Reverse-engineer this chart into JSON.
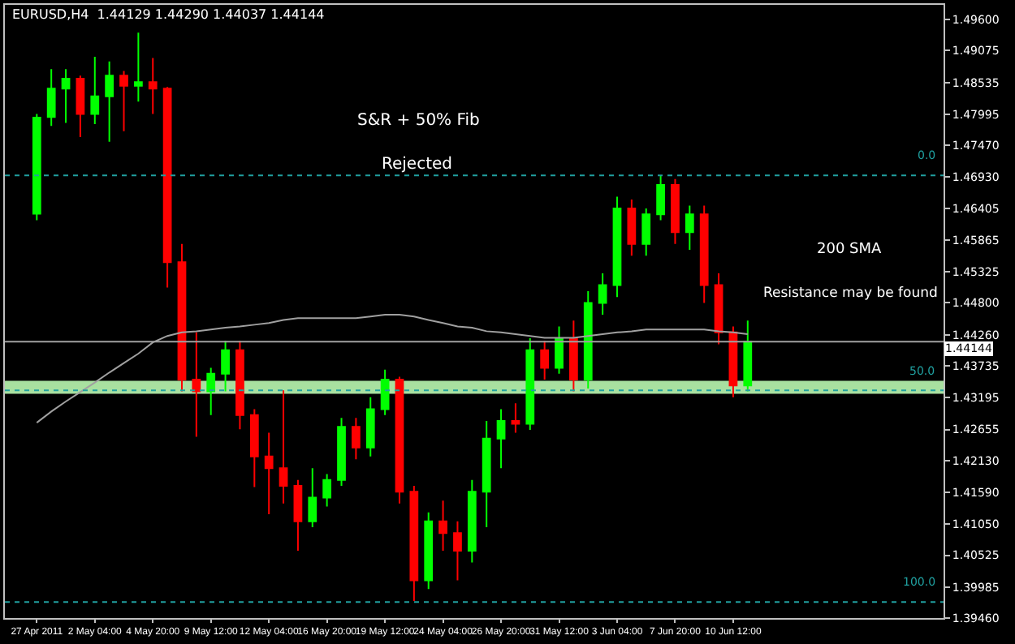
{
  "chart_data": {
    "type": "candlestick",
    "title": "EURUSD,H4  1.44129 1.44290 1.44037 1.44144",
    "categories": [
      "27 Apr 2011",
      null,
      null,
      null,
      "2 May 04:00",
      null,
      null,
      null,
      "4 May 20:00",
      null,
      null,
      null,
      "9 May 12:00",
      null,
      null,
      null,
      "12 May 04:00",
      null,
      null,
      null,
      "16 May 20:00",
      null,
      null,
      null,
      "19 May 12:00",
      null,
      null,
      null,
      "24 May 04:00",
      null,
      null,
      null,
      "26 May 20:00",
      null,
      null,
      null,
      "31 May 12:00",
      null,
      null,
      null,
      "3 Jun 04:00",
      null,
      null,
      null,
      "7 Jun 20:00",
      null,
      null,
      null,
      "10 Jun 12:00",
      null
    ],
    "ohlc": [
      [
        1.4631,
        1.48,
        1.462,
        1.4794
      ],
      [
        1.4795,
        1.4876,
        1.478,
        1.4843
      ],
      [
        1.4843,
        1.4876,
        1.4785,
        1.486
      ],
      [
        1.486,
        1.4865,
        1.4761,
        1.48
      ],
      [
        1.48,
        1.4897,
        1.4783,
        1.483
      ],
      [
        1.483,
        1.4889,
        1.4753,
        1.4865
      ],
      [
        1.4865,
        1.4873,
        1.4771,
        1.4848
      ],
      [
        1.4848,
        1.4938,
        1.4821,
        1.4854
      ],
      [
        1.4854,
        1.4895,
        1.48,
        1.4843
      ],
      [
        1.4843,
        1.4846,
        1.4506,
        1.4549
      ],
      [
        1.4549,
        1.458,
        1.433,
        1.435
      ],
      [
        1.435,
        1.443,
        1.4253,
        1.433
      ],
      [
        1.433,
        1.437,
        1.429,
        1.436
      ],
      [
        1.436,
        1.4416,
        1.433,
        1.44
      ],
      [
        1.44,
        1.4416,
        1.4266,
        1.429
      ],
      [
        1.429,
        1.43,
        1.4168,
        1.422
      ],
      [
        1.422,
        1.426,
        1.4122,
        1.42
      ],
      [
        1.42,
        1.4332,
        1.414,
        1.417
      ],
      [
        1.417,
        1.418,
        1.406,
        1.411
      ],
      [
        1.411,
        1.42,
        1.41,
        1.415
      ],
      [
        1.415,
        1.419,
        1.4135,
        1.418
      ],
      [
        1.418,
        1.4285,
        1.417,
        1.427
      ],
      [
        1.427,
        1.4285,
        1.4215,
        1.4235
      ],
      [
        1.4235,
        1.432,
        1.422,
        1.43
      ],
      [
        1.43,
        1.4367,
        1.429,
        1.435
      ],
      [
        1.435,
        1.4355,
        1.414,
        1.416
      ],
      [
        1.416,
        1.417,
        1.3975,
        1.401
      ],
      [
        1.401,
        1.4125,
        1.3995,
        1.411
      ],
      [
        1.411,
        1.4145,
        1.406,
        1.409
      ],
      [
        1.409,
        1.411,
        1.401,
        1.406
      ],
      [
        1.406,
        1.418,
        1.404,
        1.416
      ],
      [
        1.416,
        1.428,
        1.41,
        1.425
      ],
      [
        1.425,
        1.43,
        1.42,
        1.428
      ],
      [
        1.428,
        1.431,
        1.426,
        1.4275
      ],
      [
        1.4275,
        1.442,
        1.4265,
        1.44
      ],
      [
        1.44,
        1.4416,
        1.435,
        1.437
      ],
      [
        1.437,
        1.444,
        1.436,
        1.442
      ],
      [
        1.442,
        1.445,
        1.433,
        1.435
      ],
      [
        1.435,
        1.45,
        1.4335,
        1.448
      ],
      [
        1.448,
        1.453,
        1.446,
        1.451
      ],
      [
        1.451,
        1.466,
        1.449,
        1.464
      ],
      [
        1.464,
        1.4655,
        1.456,
        1.458
      ],
      [
        1.458,
        1.464,
        1.456,
        1.463
      ],
      [
        1.463,
        1.4695,
        1.462,
        1.468
      ],
      [
        1.468,
        1.469,
        1.458,
        1.46
      ],
      [
        1.46,
        1.4645,
        1.457,
        1.463
      ],
      [
        1.463,
        1.4645,
        1.448,
        1.451
      ],
      [
        1.451,
        1.453,
        1.441,
        1.443
      ],
      [
        1.443,
        1.444,
        1.432,
        1.434
      ],
      [
        1.434,
        1.445,
        1.433,
        1.44144
      ]
    ],
    "colors": [
      "#00ff00",
      "#00ff00",
      "#00ff00",
      "#ff0000",
      "#00ff00",
      "#00ff00",
      "#ff0000",
      "#00ff00",
      "#ff0000",
      "#ff0000",
      "#ff0000",
      "#ff0000",
      "#00ff00",
      "#00ff00",
      "#ff0000",
      "#ff0000",
      "#ff0000",
      "#ff0000",
      "#ff0000",
      "#00ff00",
      "#00ff00",
      "#00ff00",
      "#ff0000",
      "#00ff00",
      "#00ff00",
      "#ff0000",
      "#ff0000",
      "#00ff00",
      "#ff0000",
      "#ff0000",
      "#00ff00",
      "#00ff00",
      "#00ff00",
      "#ff0000",
      "#00ff00",
      "#ff0000",
      "#00ff00",
      "#ff0000",
      "#00ff00",
      "#00ff00",
      "#00ff00",
      "#ff0000",
      "#00ff00",
      "#00ff00",
      "#ff0000",
      "#00ff00",
      "#ff0000",
      "#ff0000",
      "#ff0000",
      "#00ff00"
    ],
    "series": [
      {
        "type": "line",
        "color": "#a0a0a0",
        "values": [
          1.4277,
          1.4296,
          1.4313,
          1.4329,
          1.4345,
          1.4362,
          1.4378,
          1.4394,
          1.4413,
          1.4424,
          1.443,
          1.4432,
          1.4435,
          1.4438,
          1.444,
          1.4443,
          1.4446,
          1.4451,
          1.4454,
          1.4454,
          1.4454,
          1.4454,
          1.4454,
          1.4457,
          1.446,
          1.446,
          1.4457,
          1.4451,
          1.4446,
          1.444,
          1.4438,
          1.4432,
          1.443,
          1.4427,
          1.4424,
          1.4421,
          1.4421,
          1.4421,
          1.4424,
          1.4427,
          1.443,
          1.4432,
          1.4435,
          1.4435,
          1.4435,
          1.4435,
          1.4435,
          1.4432,
          1.443,
          1.4427
        ]
      }
    ],
    "ylim": [
      1.3946,
      1.4985
    ],
    "yticks": [
      {
        "value": 1.496,
        "label": "1.49600"
      },
      {
        "value": 1.49075,
        "label": "1.49075"
      },
      {
        "value": 1.48535,
        "label": "1.48535"
      },
      {
        "value": 1.47995,
        "label": "1.47995"
      },
      {
        "value": 1.4747,
        "label": "1.47470"
      },
      {
        "value": 1.4693,
        "label": "1.46930"
      },
      {
        "value": 1.46405,
        "label": "1.46405"
      },
      {
        "value": 1.45865,
        "label": "1.45865"
      },
      {
        "value": 1.45325,
        "label": "1.45325"
      },
      {
        "value": 1.448,
        "label": "1.44800"
      },
      {
        "value": 1.4426,
        "label": "1.44260"
      },
      {
        "value": 1.43735,
        "label": "1.43735"
      },
      {
        "value": 1.43195,
        "label": "1.43195"
      },
      {
        "value": 1.42655,
        "label": "1.42655"
      },
      {
        "value": 1.4213,
        "label": "1.42130"
      },
      {
        "value": 1.4159,
        "label": "1.41590"
      },
      {
        "value": 1.4105,
        "label": "1.41050"
      },
      {
        "value": 1.40525,
        "label": "1.40525"
      },
      {
        "value": 1.39985,
        "label": "1.39985"
      },
      {
        "value": 1.3946,
        "label": "1.39460"
      }
    ],
    "ref_lines": [
      {
        "axis": "y",
        "value": 1.44144,
        "label": "1.44144",
        "color": "#a0a0a0",
        "line_style": "solid"
      },
      {
        "axis": "y",
        "value": 1.4696,
        "color": "#20a0a0",
        "line_style": "dotted"
      },
      {
        "axis": "y",
        "value": 1.4332,
        "color": "#20a0a0",
        "line_style": "dotted"
      },
      {
        "axis": "y",
        "value": 1.3973,
        "color": "#20a0a0",
        "line_style": "dotted"
      }
    ],
    "bands": [
      {
        "axis": "y",
        "from": 1.4326,
        "to": 1.4348,
        "color": "#a8e0a0"
      }
    ],
    "annotations": [
      "S&R + 50% Fib",
      "Rejected",
      "200 SMA",
      "Resistance may be found",
      {
        "text": "0.0",
        "y": 1.4696
      },
      {
        "text": "50.0",
        "y": 1.4332
      },
      {
        "text": "100.0",
        "y": 1.3973
      }
    ],
    "grid": false
  }
}
